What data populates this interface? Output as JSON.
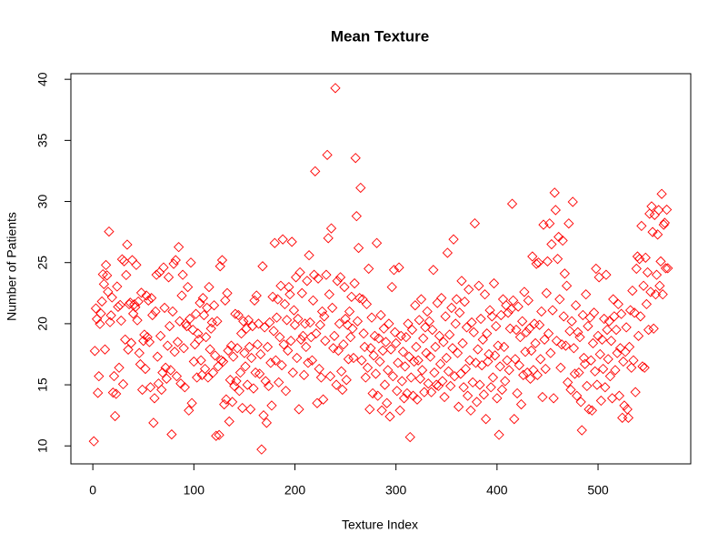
{
  "chart_data": {
    "type": "scatter",
    "title": "Mean Texture",
    "x_label": "Texture Index",
    "y_label": "Number of Patients",
    "color": "#ff0000",
    "marker": "diamond",
    "xlim": [
      -21.72,
      591.72
    ],
    "ylim": [
      8.53,
      40.46
    ],
    "xticks": [
      0,
      100,
      200,
      300,
      400,
      500
    ],
    "yticks": [
      10,
      15,
      20,
      25,
      30,
      35,
      40
    ],
    "x": [
      1,
      2,
      3,
      4,
      5,
      6,
      7,
      8,
      9,
      10,
      11,
      12,
      13,
      14,
      15,
      16,
      17,
      18,
      19,
      20,
      21,
      22,
      23,
      24,
      25,
      26,
      27,
      28,
      29,
      30,
      31,
      32,
      33,
      34,
      35,
      36,
      37,
      38,
      39,
      40,
      41,
      42,
      43,
      44,
      45,
      46,
      47,
      48,
      49,
      50,
      51,
      52,
      53,
      54,
      55,
      56,
      57,
      58,
      59,
      60,
      61,
      62,
      63,
      64,
      65,
      66,
      67,
      68,
      69,
      70,
      71,
      72,
      73,
      74,
      75,
      76,
      77,
      78,
      79,
      80,
      81,
      82,
      83,
      84,
      85,
      86,
      87,
      88,
      89,
      90,
      91,
      92,
      93,
      94,
      95,
      96,
      97,
      98,
      99,
      100,
      101,
      102,
      103,
      104,
      105,
      106,
      107,
      108,
      109,
      110,
      111,
      112,
      113,
      114,
      115,
      116,
      117,
      118,
      119,
      120,
      121,
      122,
      123,
      124,
      125,
      126,
      127,
      128,
      129,
      130,
      131,
      132,
      133,
      134,
      135,
      136,
      137,
      138,
      139,
      140,
      141,
      142,
      143,
      144,
      145,
      146,
      147,
      148,
      149,
      150,
      151,
      152,
      153,
      154,
      155,
      156,
      157,
      158,
      159,
      160,
      161,
      162,
      163,
      164,
      165,
      166,
      167,
      168,
      169,
      170,
      171,
      172,
      173,
      174,
      175,
      176,
      177,
      178,
      179,
      180,
      181,
      182,
      183,
      184,
      185,
      186,
      187,
      188,
      189,
      190,
      191,
      192,
      193,
      194,
      195,
      196,
      197,
      198,
      199,
      200,
      201,
      202,
      203,
      204,
      205,
      206,
      207,
      208,
      209,
      210,
      211,
      212,
      213,
      214,
      215,
      216,
      217,
      218,
      219,
      220,
      221,
      222,
      223,
      224,
      225,
      226,
      227,
      228,
      229,
      230,
      231,
      232,
      233,
      234,
      235,
      236,
      237,
      238,
      239,
      240,
      241,
      242,
      243,
      244,
      245,
      246,
      247,
      248,
      249,
      250,
      251,
      252,
      253,
      254,
      255,
      256,
      257,
      258,
      259,
      260,
      261,
      262,
      263,
      264,
      265,
      266,
      267,
      268,
      269,
      270,
      271,
      272,
      273,
      274,
      275,
      276,
      277,
      278,
      279,
      280,
      281,
      282,
      283,
      284,
      285,
      286,
      287,
      288,
      289,
      290,
      291,
      292,
      293,
      294,
      295,
      296,
      297,
      298,
      299,
      300,
      301,
      302,
      303,
      304,
      305,
      306,
      307,
      308,
      309,
      310,
      311,
      312,
      313,
      314,
      315,
      316,
      317,
      318,
      319,
      320,
      321,
      322,
      323,
      324,
      325,
      326,
      327,
      328,
      329,
      330,
      331,
      332,
      333,
      334,
      335,
      336,
      337,
      338,
      339,
      340,
      341,
      342,
      343,
      344,
      345,
      346,
      347,
      348,
      349,
      350,
      351,
      352,
      353,
      354,
      355,
      356,
      357,
      358,
      359,
      360,
      361,
      362,
      363,
      364,
      365,
      366,
      367,
      368,
      369,
      370,
      371,
      372,
      373,
      374,
      375,
      376,
      377,
      378,
      379,
      380,
      381,
      382,
      383,
      384,
      385,
      386,
      387,
      388,
      389,
      390,
      391,
      392,
      393,
      394,
      395,
      396,
      397,
      398,
      399,
      400,
      401,
      402,
      403,
      404,
      405,
      406,
      407,
      408,
      409,
      410,
      411,
      412,
      413,
      414,
      415,
      416,
      417,
      418,
      419,
      420,
      421,
      422,
      423,
      424,
      425,
      426,
      427,
      428,
      429,
      430,
      431,
      432,
      433,
      434,
      435,
      436,
      437,
      438,
      439,
      440,
      441,
      442,
      443,
      444,
      445,
      446,
      447,
      448,
      449,
      450,
      451,
      452,
      453,
      454,
      455,
      456,
      457,
      458,
      459,
      460,
      461,
      462,
      463,
      464,
      465,
      466,
      467,
      468,
      469,
      470,
      471,
      472,
      473,
      474,
      475,
      476,
      477,
      478,
      479,
      480,
      481,
      482,
      483,
      484,
      485,
      486,
      487,
      488,
      489,
      490,
      491,
      492,
      493,
      494,
      495,
      496,
      497,
      498,
      499,
      500,
      501,
      502,
      503,
      504,
      505,
      506,
      507,
      508,
      509,
      510,
      511,
      512,
      513,
      514,
      515,
      516,
      517,
      518,
      519,
      520,
      521,
      522,
      523,
      524,
      525,
      526,
      527,
      528,
      529,
      530,
      531,
      532,
      533,
      534,
      535,
      536,
      537,
      538,
      539,
      540,
      541,
      542,
      543,
      544,
      545,
      546,
      547,
      548,
      549,
      550,
      551,
      552,
      553,
      554,
      555,
      556,
      557,
      558,
      559,
      560,
      561,
      562,
      563,
      564,
      565,
      566,
      567,
      568,
      569
    ],
    "values": [
      10.38,
      17.77,
      21.25,
      20.38,
      14.34,
      15.7,
      19.98,
      20.83,
      21.82,
      24.04,
      23.24,
      17.89,
      24.8,
      23.95,
      22.61,
      27.54,
      20.13,
      20.68,
      22.15,
      14.36,
      15.71,
      12.44,
      14.26,
      23.04,
      21.38,
      16.4,
      21.53,
      20.25,
      25.27,
      15.05,
      25.11,
      18.7,
      23.98,
      26.47,
      17.88,
      21.59,
      21.72,
      18.42,
      25.2,
      20.82,
      21.58,
      21.35,
      24.81,
      20.28,
      21.81,
      17.6,
      16.68,
      22.53,
      14.6,
      18.6,
      19.1,
      16.3,
      22.3,
      18.9,
      21.9,
      18.5,
      14.8,
      22.1,
      20.7,
      11.89,
      13.9,
      21.0,
      24.0,
      17.3,
      15.1,
      24.2,
      19.0,
      14.6,
      16.0,
      24.6,
      21.3,
      16.4,
      15.5,
      18.2,
      23.8,
      19.8,
      16.2,
      10.94,
      21.0,
      24.9,
      17.7,
      25.2,
      15.7,
      18.5,
      26.27,
      20.2,
      15.1,
      22.3,
      24.0,
      18.0,
      14.8,
      20.0,
      19.8,
      23.0,
      12.9,
      20.4,
      25.0,
      13.5,
      19.5,
      16.9,
      18.3,
      20.8,
      15.6,
      19.2,
      18.7,
      21.7,
      17.0,
      15.8,
      22.1,
      20.7,
      16.3,
      18.9,
      21.3,
      15.6,
      23.0,
      17.9,
      19.6,
      20.1,
      16.0,
      21.5,
      17.4,
      10.82,
      20.2,
      16.5,
      10.89,
      24.7,
      17.0,
      25.2,
      16.9,
      13.4,
      21.9,
      13.8,
      22.5,
      17.8,
      12.0,
      15.4,
      18.2,
      13.6,
      17.3,
      14.9,
      20.8,
      15.3,
      18.0,
      20.7,
      14.5,
      16.0,
      19.2,
      13.1,
      20.2,
      17.6,
      16.5,
      19.6,
      15.0,
      20.3,
      18.1,
      13.0,
      17.2,
      19.8,
      14.7,
      21.9,
      16.0,
      22.3,
      18.3,
      20.0,
      15.9,
      17.5,
      9.71,
      24.7,
      12.5,
      19.7,
      15.3,
      11.89,
      18.1,
      14.9,
      20.1,
      16.8,
      13.3,
      22.2,
      19.4,
      26.6,
      17.0,
      20.5,
      22.0,
      15.2,
      18.9,
      23.1,
      16.6,
      26.9,
      18.3,
      21.6,
      14.5,
      20.3,
      17.8,
      23.0,
      22.4,
      18.6,
      26.7,
      16.0,
      21.1,
      19.9,
      23.8,
      17.2,
      20.4,
      13.0,
      24.2,
      18.7,
      22.5,
      19.0,
      15.8,
      20.0,
      18.1,
      23.5,
      16.8,
      25.6,
      20.1,
      18.9,
      17.0,
      21.9,
      24.0,
      32.47,
      19.2,
      13.5,
      23.7,
      16.3,
      19.9,
      15.6,
      21.0,
      13.8,
      20.6,
      18.6,
      24.0,
      33.81,
      27.0,
      22.4,
      15.7,
      27.8,
      21.3,
      18.0,
      19.0,
      39.28,
      15.0,
      23.5,
      17.8,
      20.0,
      23.8,
      16.1,
      14.6,
      18.3,
      23.0,
      20.4,
      15.4,
      19.9,
      17.1,
      21.0,
      18.9,
      22.2,
      19.6,
      17.2,
      23.3,
      33.56,
      28.8,
      20.2,
      26.2,
      22.1,
      31.12,
      17.0,
      22.0,
      19.2,
      18.1,
      15.6,
      21.6,
      16.4,
      24.5,
      13.0,
      18.0,
      20.5,
      14.3,
      17.4,
      19.0,
      15.9,
      26.6,
      14.1,
      18.8,
      16.9,
      20.7,
      12.9,
      17.8,
      19.6,
      15.0,
      18.5,
      13.5,
      16.2,
      20.0,
      12.4,
      17.9,
      23.0,
      15.7,
      24.4,
      19.3,
      18.4,
      14.5,
      16.8,
      24.6,
      12.9,
      19.0,
      15.3,
      17.7,
      13.9,
      16.5,
      18.9,
      14.3,
      20.0,
      17.3,
      10.72,
      15.6,
      19.5,
      14.1,
      16.9,
      21.5,
      18.1,
      13.8,
      17.0,
      20.3,
      15.5,
      22.0,
      16.2,
      18.8,
      14.4,
      19.7,
      17.6,
      21.0,
      15.1,
      20.2,
      17.3,
      14.4,
      19.5,
      24.4,
      16.0,
      18.1,
      15.0,
      21.7,
      14.9,
      19.0,
      16.7,
      22.1,
      15.3,
      18.5,
      14.0,
      20.6,
      17.2,
      25.8,
      16.1,
      19.1,
      14.9,
      21.3,
      18.0,
      26.9,
      15.7,
      20.0,
      22.0,
      17.6,
      13.2,
      20.9,
      15.9,
      23.5,
      18.4,
      14.8,
      21.8,
      16.3,
      19.7,
      14.1,
      22.8,
      17.0,
      12.9,
      20.1,
      15.2,
      19.3,
      28.21,
      16.8,
      13.6,
      17.9,
      23.1,
      15.0,
      20.4,
      16.6,
      18.7,
      14.2,
      22.4,
      12.2,
      19.2,
      16.9,
      17.5,
      21.1,
      14.8,
      20.6,
      15.6,
      23.3,
      17.4,
      19.8,
      13.9,
      18.2,
      10.91,
      16.5,
      20.7,
      14.6,
      22.0,
      18.1,
      15.3,
      21.5,
      17.0,
      20.9,
      16.2,
      19.6,
      21.2,
      29.81,
      21.9,
      12.2,
      17.1,
      19.5,
      14.3,
      21.4,
      16.6,
      18.9,
      13.4,
      20.2,
      15.8,
      22.6,
      17.7,
      19.3,
      16.0,
      21.9,
      19.6,
      15.5,
      17.8,
      25.5,
      16.2,
      20.0,
      18.4,
      24.9,
      15.8,
      25.0,
      19.9,
      17.1,
      21.0,
      14.0,
      28.1,
      18.7,
      16.3,
      22.5,
      25.1,
      19.2,
      28.2,
      17.6,
      26.5,
      21.1,
      13.9,
      30.72,
      29.3,
      18.6,
      25.3,
      27.1,
      22.0,
      16.4,
      18.3,
      26.8,
      20.6,
      24.1,
      18.2,
      23.1,
      15.2,
      28.2,
      19.4,
      14.6,
      20.2,
      29.97,
      18.0,
      15.9,
      21.5,
      14.1,
      19.3,
      16.0,
      18.9,
      13.6,
      11.28,
      20.7,
      17.2,
      16.7,
      22.4,
      14.9,
      19.8,
      13.0,
      20.5,
      17.0,
      12.9,
      18.4,
      20.9,
      16.1,
      24.5,
      15.0,
      19.0,
      23.8,
      17.5,
      13.7,
      18.7,
      16.3,
      20.4,
      14.8,
      24.0,
      19.5,
      17.1,
      20.2,
      15.7,
      18.6,
      13.9,
      22.0,
      20.6,
      16.2,
      19.5,
      17.6,
      21.6,
      14.1,
      18.0,
      20.8,
      12.3,
      16.9,
      13.3,
      17.7,
      19.7,
      13.0,
      12.3,
      18.1,
      21.1,
      16.4,
      22.7,
      17.0,
      20.9,
      14.4,
      24.5,
      25.5,
      19.0,
      25.3,
      20.6,
      28.0,
      16.5,
      23.1,
      16.4,
      25.4,
      21.6,
      24.2,
      19.5,
      29.0,
      22.6,
      29.6,
      27.5,
      19.6,
      28.9,
      22.4,
      24.0,
      27.3,
      29.3,
      23.1,
      25.1,
      30.62,
      22.4,
      28.1,
      28.25,
      24.54,
      29.33,
      24.54
    ]
  }
}
